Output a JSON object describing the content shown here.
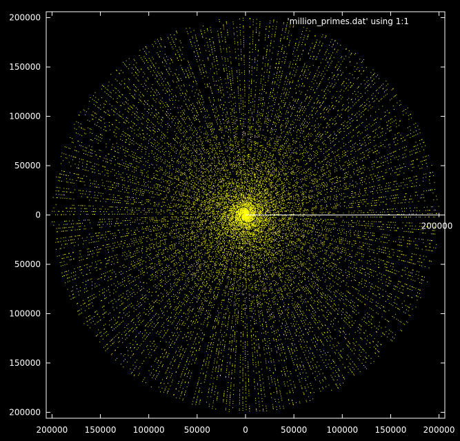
{
  "chart_data": {
    "type": "scatter",
    "title": "",
    "xlabel": "",
    "ylabel": "",
    "xlim": [
      -206000,
      206000
    ],
    "ylim": [
      -206000,
      206000
    ],
    "grid": false,
    "legend_position": "top-right",
    "legend_text": "'million_primes.dat' using 1:1",
    "x_ticks": [
      {
        "value": -200000,
        "label": "200000"
      },
      {
        "value": -150000,
        "label": "150000"
      },
      {
        "value": -100000,
        "label": "100000"
      },
      {
        "value": -50000,
        "label": "50000"
      },
      {
        "value": 0,
        "label": "0"
      },
      {
        "value": 50000,
        "label": "50000"
      },
      {
        "value": 100000,
        "label": "100000"
      },
      {
        "value": 150000,
        "label": "150000"
      },
      {
        "value": 200000,
        "label": "200000"
      }
    ],
    "y_ticks": [
      {
        "value": 200000,
        "label": "200000"
      },
      {
        "value": 150000,
        "label": "150000"
      },
      {
        "value": 100000,
        "label": "100000"
      },
      {
        "value": 50000,
        "label": "50000"
      },
      {
        "value": 0,
        "label": "0"
      },
      {
        "value": -50000,
        "label": "50000"
      },
      {
        "value": -100000,
        "label": "100000"
      },
      {
        "value": -150000,
        "label": "150000"
      },
      {
        "value": -200000,
        "label": "200000"
      }
    ],
    "polar_axis_label": {
      "value": 200000,
      "label": "200000"
    },
    "series": [
      {
        "points_description_generated": "primes p plotted in polar coordinates (r = p, theta = p radians)",
        "prime_limit": 200000,
        "color": "#ffff00"
      }
    ],
    "colors": {
      "background": "#000000",
      "border": "#ffffff",
      "text": "#ffffff",
      "points": "#ffff00"
    }
  }
}
